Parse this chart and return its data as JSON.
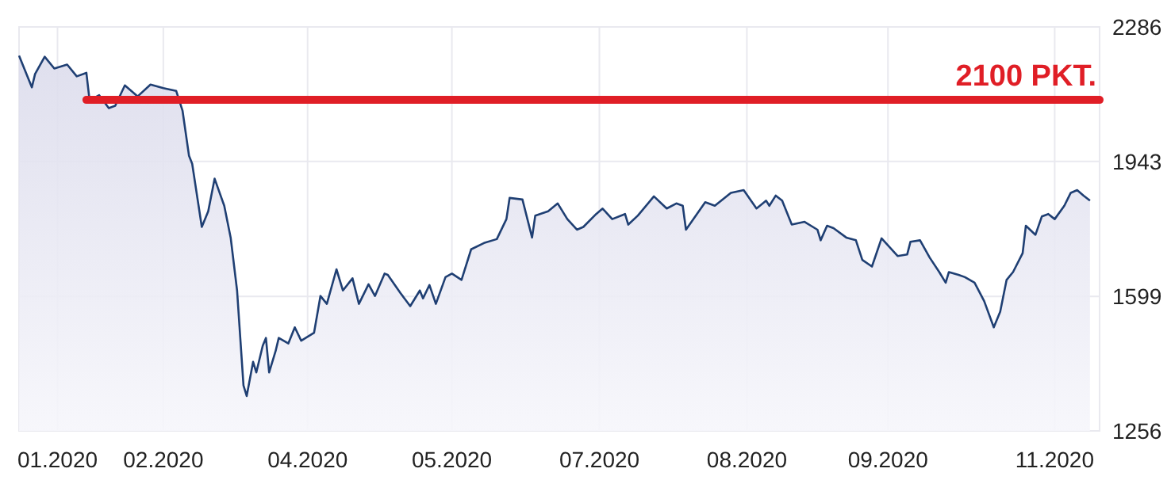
{
  "chart_data": {
    "type": "area",
    "x": [
      "2020-01-02",
      "2020-01-06",
      "2020-01-07",
      "2020-01-10",
      "2020-01-13",
      "2020-01-17",
      "2020-01-20",
      "2020-01-23",
      "2020-01-24",
      "2020-01-27",
      "2020-01-30",
      "2020-02-01",
      "2020-02-04",
      "2020-02-08",
      "2020-02-12",
      "2020-02-16",
      "2020-02-20",
      "2020-02-22",
      "2020-02-24",
      "2020-02-25",
      "2020-02-28",
      "2020-03-01",
      "2020-03-03",
      "2020-03-06",
      "2020-03-08",
      "2020-03-10",
      "2020-03-12",
      "2020-03-13",
      "2020-03-15",
      "2020-03-16",
      "2020-03-18",
      "2020-03-19",
      "2020-03-20",
      "2020-03-22",
      "2020-03-23",
      "2020-03-26",
      "2020-03-28",
      "2020-03-30",
      "2020-04-03",
      "2020-04-05",
      "2020-04-07",
      "2020-04-10",
      "2020-04-12",
      "2020-04-15",
      "2020-04-17",
      "2020-04-20",
      "2020-04-22",
      "2020-04-25",
      "2020-04-26",
      "2020-04-30",
      "2020-05-03",
      "2020-05-06",
      "2020-05-07",
      "2020-05-09",
      "2020-05-11",
      "2020-05-14",
      "2020-05-16",
      "2020-05-19",
      "2020-05-22",
      "2020-05-26",
      "2020-05-30",
      "2020-06-02",
      "2020-06-03",
      "2020-06-07",
      "2020-06-10",
      "2020-06-11",
      "2020-06-15",
      "2020-06-18",
      "2020-06-21",
      "2020-06-24",
      "2020-06-26",
      "2020-06-30",
      "2020-07-02",
      "2020-07-05",
      "2020-07-09",
      "2020-07-10",
      "2020-07-13",
      "2020-07-18",
      "2020-07-22",
      "2020-07-25",
      "2020-07-27",
      "2020-07-28",
      "2020-08-03",
      "2020-08-06",
      "2020-08-11",
      "2020-08-15",
      "2020-08-19",
      "2020-08-22",
      "2020-08-23",
      "2020-08-25",
      "2020-08-27",
      "2020-08-30",
      "2020-09-03",
      "2020-09-07",
      "2020-09-08",
      "2020-09-10",
      "2020-09-12",
      "2020-09-16",
      "2020-09-19",
      "2020-09-21",
      "2020-09-24",
      "2020-09-27",
      "2020-10-02",
      "2020-10-05",
      "2020-10-06",
      "2020-10-09",
      "2020-10-12",
      "2020-10-15",
      "2020-10-17",
      "2020-10-18",
      "2020-10-21",
      "2020-10-23",
      "2020-10-26",
      "2020-10-29",
      "2020-11-01",
      "2020-11-03",
      "2020-11-05",
      "2020-11-07",
      "2020-11-10",
      "2020-11-11",
      "2020-11-14",
      "2020-11-16",
      "2020-11-18",
      "2020-11-20",
      "2020-11-23",
      "2020-11-25",
      "2020-11-27",
      "2020-11-29",
      "2020-12-01"
    ],
    "series": [
      {
        "color": "#1f3f73",
        "values": [
          2213,
          2132,
          2166,
          2210,
          2180,
          2190,
          2160,
          2169,
          2099,
          2112,
          2079,
          2085,
          2137,
          2109,
          2139,
          2130,
          2123,
          2072,
          1958,
          1937,
          1776,
          1816,
          1899,
          1830,
          1749,
          1614,
          1372,
          1345,
          1432,
          1405,
          1473,
          1493,
          1405,
          1459,
          1493,
          1479,
          1520,
          1486,
          1506,
          1600,
          1580,
          1668,
          1614,
          1645,
          1580,
          1630,
          1600,
          1657,
          1654,
          1607,
          1574,
          1614,
          1594,
          1628,
          1580,
          1648,
          1657,
          1641,
          1719,
          1735,
          1745,
          1796,
          1850,
          1846,
          1749,
          1805,
          1816,
          1836,
          1796,
          1769,
          1776,
          1809,
          1823,
          1796,
          1809,
          1782,
          1805,
          1854,
          1823,
          1836,
          1830,
          1769,
          1839,
          1830,
          1863,
          1870,
          1823,
          1843,
          1830,
          1856,
          1843,
          1782,
          1789,
          1769,
          1742,
          1779,
          1773,
          1749,
          1742,
          1692,
          1675,
          1747,
          1702,
          1706,
          1738,
          1742,
          1698,
          1661,
          1634,
          1661,
          1654,
          1648,
          1634,
          1587,
          1520,
          1560,
          1641,
          1661,
          1709,
          1779,
          1756,
          1803,
          1809,
          1796,
          1830,
          1863,
          1870,
          1856,
          1843
        ]
      }
    ],
    "xlim": [
      "2020-01-02",
      "2020-12-04"
    ],
    "xticks": [
      {
        "value": "2020-01-14",
        "label": "01.2020"
      },
      {
        "value": "2020-02-16",
        "label": "02.2020"
      },
      {
        "value": "2020-04-01",
        "label": "04.2020"
      },
      {
        "value": "2020-05-16",
        "label": "05.2020"
      },
      {
        "value": "2020-07-01",
        "label": "07.2020"
      },
      {
        "value": "2020-08-16",
        "label": "08.2020"
      },
      {
        "value": "2020-09-29",
        "label": "09.2020"
      },
      {
        "value": "2020-11-20",
        "label": "11.2020"
      }
    ],
    "ylim": [
      1256,
      2286
    ],
    "yticks": [
      1256,
      1599,
      1943,
      2286
    ],
    "grid": true,
    "ref_lines": [
      {
        "axis": "y",
        "value": 2100,
        "label": "2100 PKT.",
        "color": "#e01e26"
      }
    ]
  }
}
